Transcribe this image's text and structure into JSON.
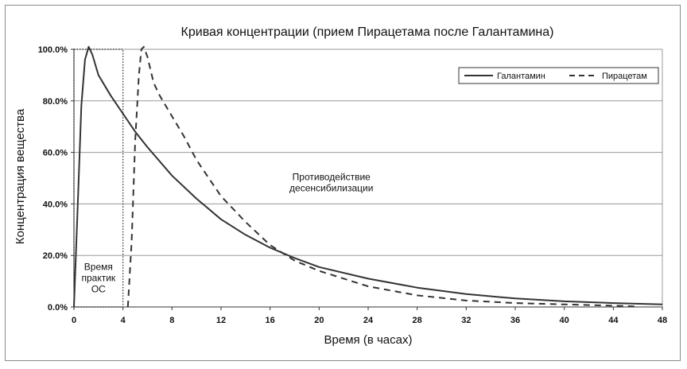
{
  "chart_data": {
    "type": "line",
    "title": "Кривая концентрации (прием Пирацетама после Галантамина)",
    "xlabel": "Время (в часах)",
    "ylabel": "Концентрация вещества",
    "xlim": [
      0,
      48
    ],
    "ylim": [
      0,
      100
    ],
    "x_ticks": [
      "0",
      "4",
      "8",
      "12",
      "16",
      "20",
      "24",
      "28",
      "32",
      "36",
      "40",
      "44",
      "48"
    ],
    "y_ticks": [
      "0.0%",
      "20.0%",
      "40.0%",
      "60.0%",
      "80.0%",
      "100.0%"
    ],
    "grid": "horizontal",
    "legend_position": "top-right",
    "series": [
      {
        "name": "Галантамин",
        "style": "solid",
        "color": "#333333",
        "points": [
          [
            0,
            0
          ],
          [
            0.3,
            38
          ],
          [
            0.6,
            78
          ],
          [
            0.9,
            96
          ],
          [
            1.2,
            101
          ],
          [
            1.5,
            98
          ],
          [
            2,
            90
          ],
          [
            3,
            82
          ],
          [
            4,
            75
          ],
          [
            5,
            68
          ],
          [
            6,
            62
          ],
          [
            8,
            51
          ],
          [
            10,
            42
          ],
          [
            12,
            34
          ],
          [
            14,
            28
          ],
          [
            16,
            23
          ],
          [
            18,
            19
          ],
          [
            20,
            15.5
          ],
          [
            24,
            11
          ],
          [
            28,
            7.5
          ],
          [
            32,
            5
          ],
          [
            36,
            3.3
          ],
          [
            40,
            2.2
          ],
          [
            44,
            1.5
          ],
          [
            48,
            1
          ]
        ]
      },
      {
        "name": "Пирацетам",
        "style": "dashed",
        "color": "#333333",
        "points": [
          [
            4.4,
            0
          ],
          [
            4.7,
            25
          ],
          [
            5,
            65
          ],
          [
            5.3,
            90
          ],
          [
            5.5,
            100
          ],
          [
            5.7,
            101
          ],
          [
            6,
            97
          ],
          [
            6.5,
            87
          ],
          [
            7,
            82
          ],
          [
            8,
            74
          ],
          [
            9,
            66
          ],
          [
            10,
            57
          ],
          [
            12,
            43
          ],
          [
            14,
            33
          ],
          [
            16,
            24
          ],
          [
            18,
            18
          ],
          [
            20,
            14
          ],
          [
            24,
            8
          ],
          [
            28,
            4.5
          ],
          [
            32,
            2.5
          ],
          [
            36,
            1.5
          ],
          [
            40,
            1
          ],
          [
            44,
            0.5
          ],
          [
            46,
            0.2
          ]
        ]
      }
    ],
    "region": {
      "x_range": [
        0,
        4
      ],
      "y_range": [
        0,
        100
      ],
      "style": "dotted"
    },
    "annotations": [
      {
        "lines": [
          "Время",
          "практик",
          "ОС"
        ],
        "x": 2,
        "y": 10
      },
      {
        "lines": [
          "Противодействие",
          "десенсибилизации"
        ],
        "x": 21,
        "y": 47
      }
    ]
  }
}
